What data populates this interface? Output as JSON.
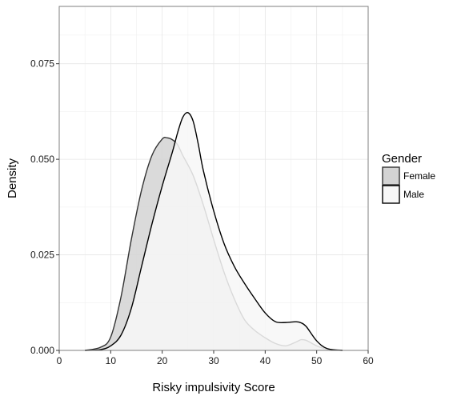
{
  "chart_data": {
    "type": "area",
    "xlabel": "Risky impulsivity Score",
    "ylabel": "Density",
    "xlim": [
      0,
      60
    ],
    "ylim": [
      0,
      0.09
    ],
    "x_ticks": [
      0,
      10,
      20,
      30,
      40,
      50,
      60
    ],
    "x_tick_labels": [
      "0",
      "10",
      "20",
      "30",
      "40",
      "50",
      "60"
    ],
    "y_ticks": [
      0,
      0.025,
      0.05,
      0.075
    ],
    "y_tick_labels": [
      "0.000",
      "0.025",
      "0.050",
      "0.075"
    ],
    "grid": true,
    "legend": {
      "title": "Gender",
      "position": "right"
    },
    "series": [
      {
        "name": "Female",
        "fill": "#d3d3d3",
        "stroke": "#333333",
        "x": [
          5,
          8,
          10,
          12,
          14,
          16,
          18,
          20,
          21,
          22,
          23,
          24,
          26,
          28,
          30,
          32,
          34,
          36,
          38,
          40,
          42,
          44,
          46,
          47,
          48,
          50,
          52,
          55
        ],
        "y": [
          0.0,
          0.0008,
          0.0035,
          0.014,
          0.029,
          0.042,
          0.051,
          0.0553,
          0.0556,
          0.0551,
          0.0538,
          0.051,
          0.0458,
          0.038,
          0.029,
          0.0205,
          0.0135,
          0.008,
          0.0052,
          0.0033,
          0.0018,
          0.0012,
          0.0022,
          0.0028,
          0.0026,
          0.0012,
          0.0003,
          0.0
        ]
      },
      {
        "name": "Male",
        "fill": "#f7f7f7",
        "stroke": "#000000",
        "x": [
          5,
          8,
          10,
          12,
          14,
          16,
          18,
          20,
          22,
          23,
          24,
          25,
          26,
          27,
          28,
          30,
          32,
          34,
          36,
          38,
          40,
          42,
          44,
          46,
          47,
          48,
          50,
          52,
          55
        ],
        "y": [
          0.0,
          0.0002,
          0.0012,
          0.004,
          0.011,
          0.022,
          0.033,
          0.043,
          0.052,
          0.057,
          0.061,
          0.0622,
          0.06,
          0.054,
          0.047,
          0.0365,
          0.028,
          0.022,
          0.0175,
          0.0135,
          0.0098,
          0.0075,
          0.0073,
          0.0075,
          0.0072,
          0.0062,
          0.0025,
          0.0005,
          0.0
        ]
      }
    ]
  }
}
